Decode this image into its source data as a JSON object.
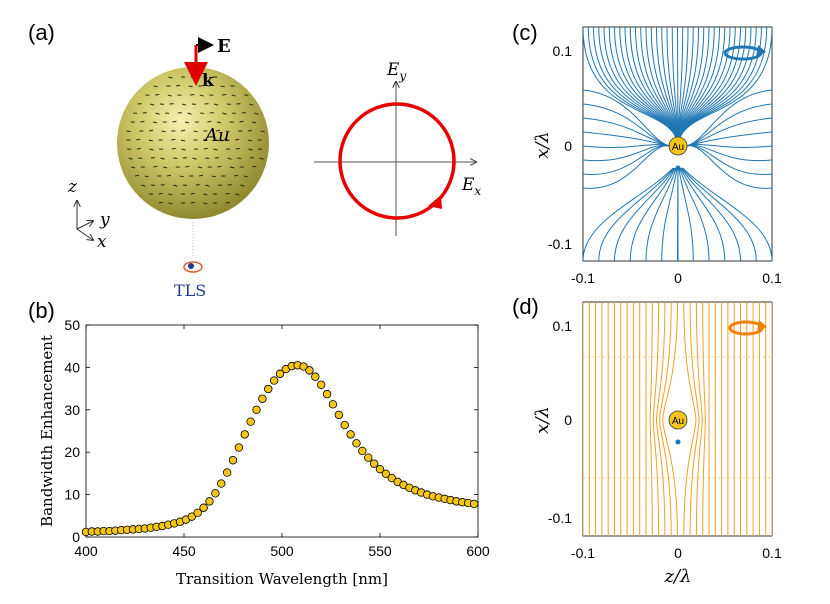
{
  "panel_labels": {
    "a": "(a)",
    "b": "(b)",
    "c": "(c)",
    "d": "(d)"
  },
  "panel_a": {
    "sphere_label": "Au",
    "field_E": "E",
    "field_k": "k",
    "axis_z": "z",
    "axis_y": "y",
    "axis_x": "x",
    "emitter_label": "TLS",
    "polar_Ey": "E",
    "polar_Ey_sub": "y",
    "polar_Ex": "E",
    "polar_Ex_sub": "x",
    "colors": {
      "sphere": "#c8c35a",
      "arrow": "#e00000",
      "circle": "#e60000",
      "tls": "#1f3a8a"
    }
  },
  "panel_c": {
    "ylabel": "x/λ",
    "particle_label": "Au",
    "yticks": [
      "0.1",
      "0",
      "-0.1"
    ],
    "xticks": [
      "-0.1",
      "0",
      "0.1"
    ],
    "line_color": "#1f77b4"
  },
  "panel_d": {
    "ylabel": "x/λ",
    "xlabel": "z/λ",
    "particle_label": "Au",
    "yticks": [
      "0.1",
      "0",
      "-0.1"
    ],
    "xticks": [
      "-0.1",
      "0",
      "0.1"
    ],
    "line_color": "#f0a020"
  },
  "chart_data": {
    "type": "scatter",
    "title": "",
    "xlabel": "Transition Wavelength [nm]",
    "ylabel": "Bandwidth Enhancement",
    "xlim": [
      400,
      600
    ],
    "ylim": [
      0,
      50
    ],
    "xticks": [
      400,
      450,
      500,
      550,
      600
    ],
    "yticks": [
      0,
      10,
      20,
      30,
      40,
      50
    ],
    "marker_color": "#f5c518",
    "peak": {
      "x": 508,
      "y": 40.5
    },
    "x": [
      400,
      403,
      406,
      409,
      412,
      415,
      418,
      421,
      424,
      427,
      430,
      433,
      436,
      439,
      442,
      445,
      448,
      451,
      454,
      457,
      460,
      463,
      466,
      469,
      472,
      475,
      478,
      481,
      484,
      487,
      490,
      493,
      496,
      499,
      502,
      505,
      508,
      511,
      514,
      517,
      520,
      523,
      526,
      529,
      532,
      535,
      538,
      541,
      544,
      547,
      550,
      553,
      556,
      559,
      562,
      565,
      568,
      571,
      574,
      577,
      580,
      583,
      586,
      589,
      592,
      595,
      598
    ],
    "y": [
      1.2,
      1.3,
      1.3,
      1.4,
      1.4,
      1.5,
      1.6,
      1.7,
      1.8,
      1.9,
      2.0,
      2.2,
      2.4,
      2.6,
      2.9,
      3.2,
      3.6,
      4.1,
      4.8,
      5.7,
      6.9,
      8.4,
      10.3,
      12.6,
      15.2,
      18.1,
      21.1,
      24.2,
      27.2,
      30.0,
      32.6,
      34.9,
      36.9,
      38.5,
      39.6,
      40.3,
      40.5,
      40.2,
      39.3,
      37.8,
      35.9,
      33.7,
      31.3,
      28.8,
      26.4,
      24.2,
      22.1,
      20.3,
      18.7,
      17.3,
      16.0,
      14.9,
      13.9,
      13.0,
      12.3,
      11.6,
      11.0,
      10.5,
      10.0,
      9.6,
      9.3,
      9.0,
      8.7,
      8.4,
      8.2,
      8.0,
      7.8
    ]
  }
}
